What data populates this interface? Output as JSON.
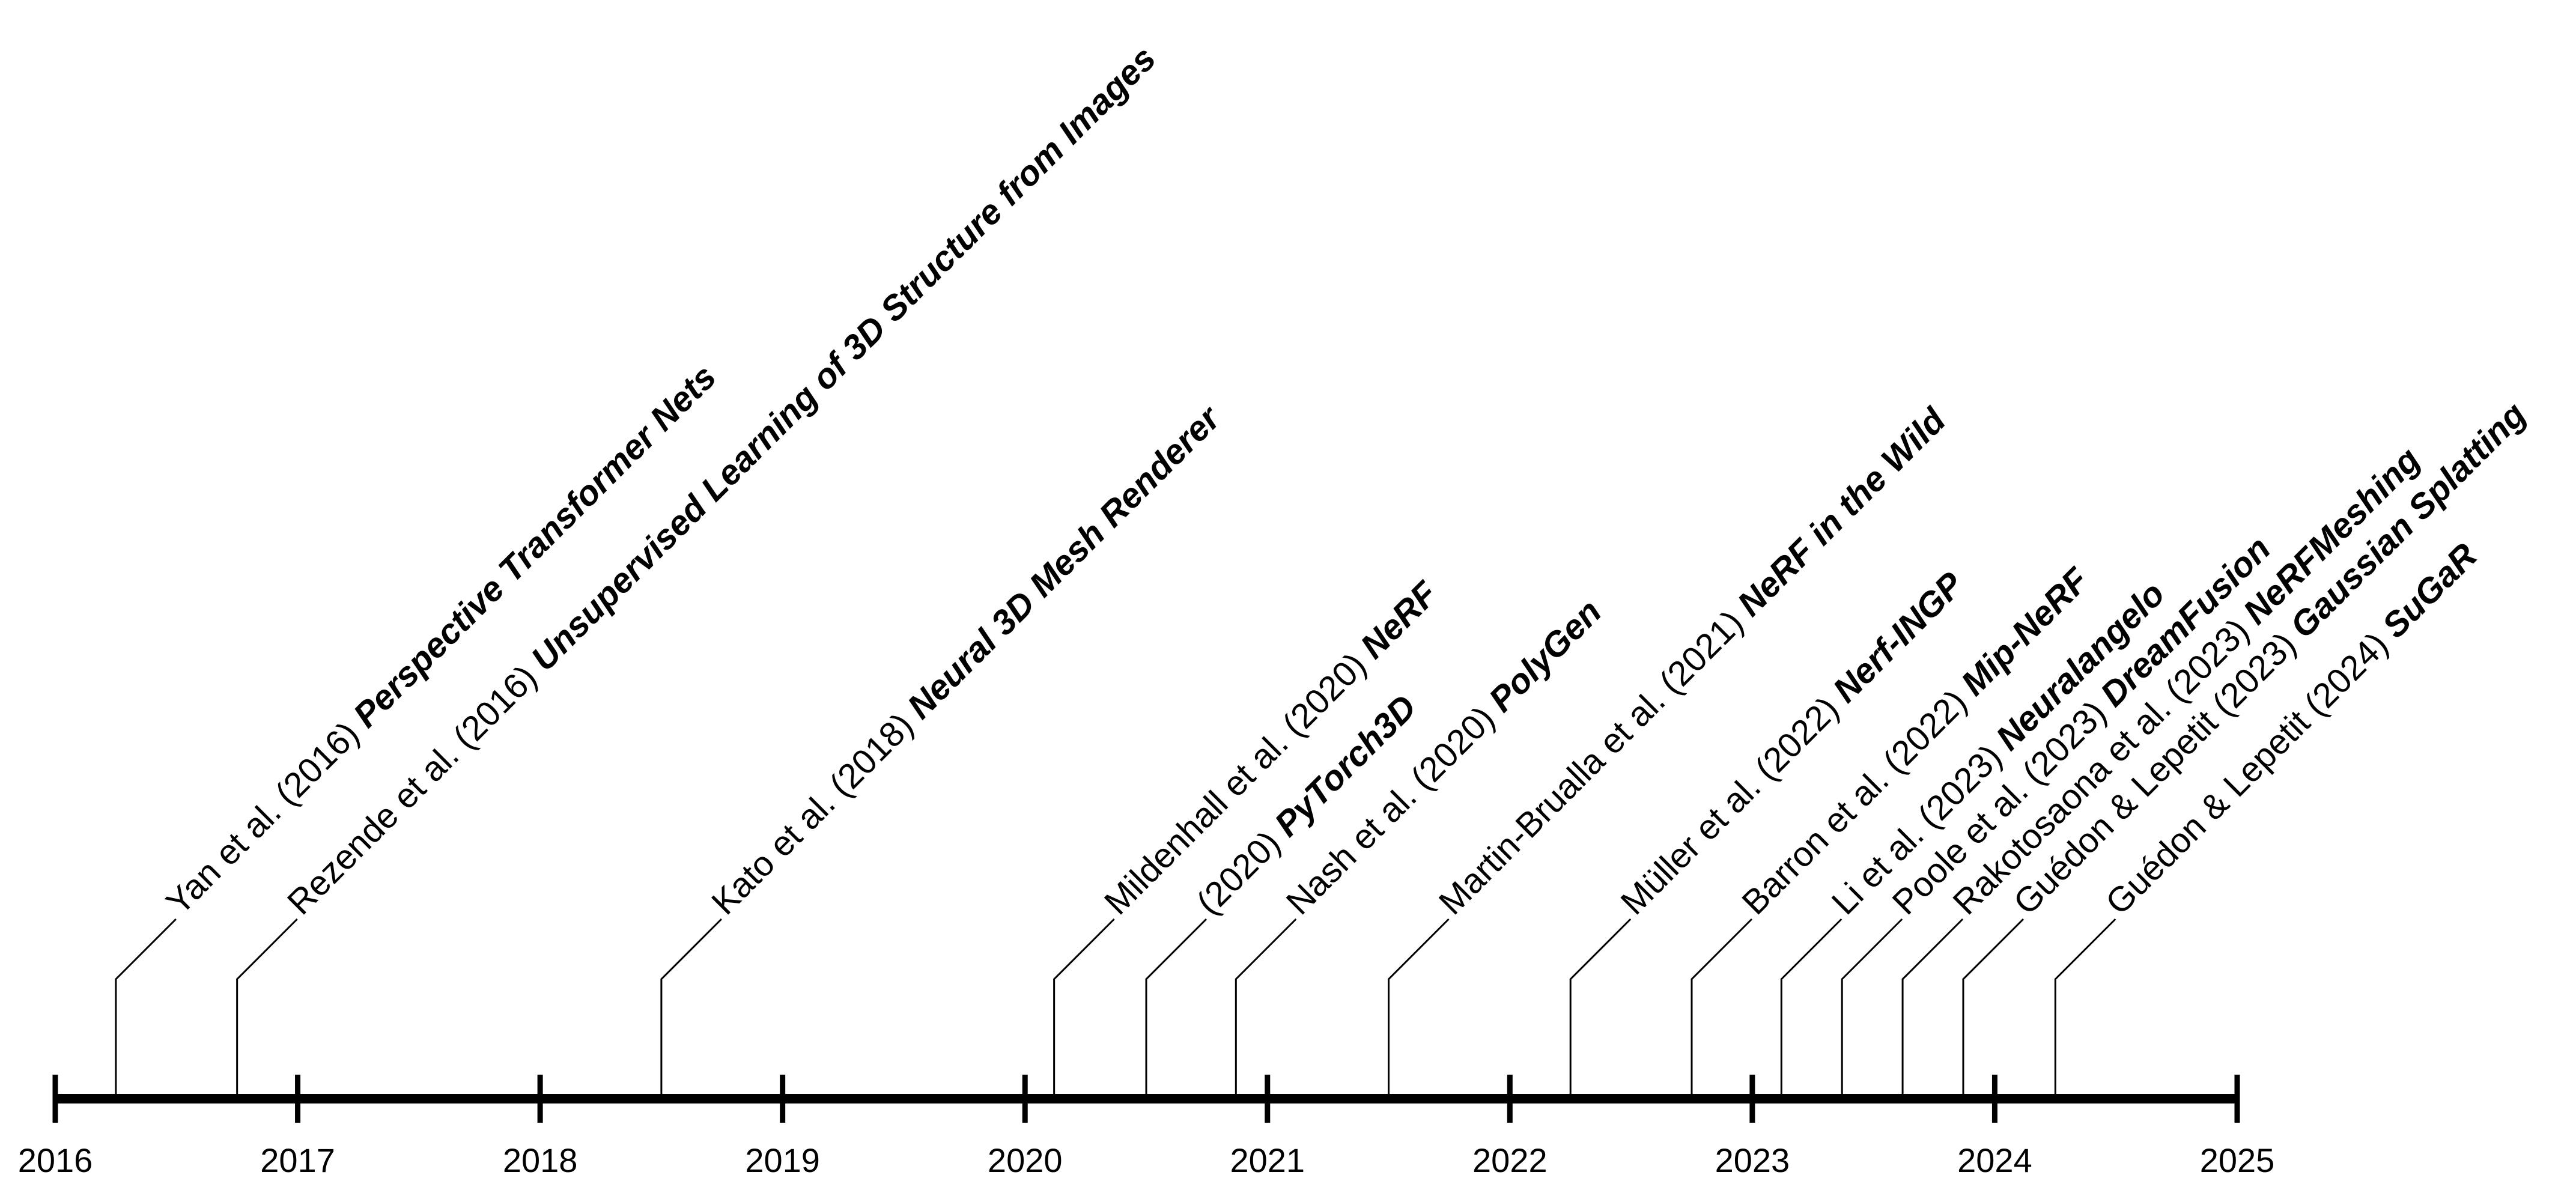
{
  "timeline": {
    "years": [
      "2016",
      "2017",
      "2018",
      "2019",
      "2020",
      "2021",
      "2022",
      "2023",
      "2024",
      "2025"
    ],
    "start_year": 2016,
    "end_year": 2025,
    "events": [
      {
        "date": 2016.25,
        "author": "Yan et al. (2016) ",
        "title": "Perspective Transformer Nets"
      },
      {
        "date": 2016.75,
        "author": "Rezende et al. (2016) ",
        "title": "Unsupervised Learning of 3D Structure from Images"
      },
      {
        "date": 2018.5,
        "author": "Kato et al. (2018) ",
        "title": "Neural 3D Mesh Renderer"
      },
      {
        "date": 2020.12,
        "author": "Mildenhall et al. (2020) ",
        "title": "NeRF"
      },
      {
        "date": 2020.5,
        "author": "(2020) ",
        "title": "PyTorch3D"
      },
      {
        "date": 2020.87,
        "author": "Nash et al. (2020) ",
        "title": "PolyGen"
      },
      {
        "date": 2021.5,
        "author": "Martin-Brualla et al. (2021) ",
        "title": "NeRF in the Wild"
      },
      {
        "date": 2022.25,
        "author": "Müller et al. (2022) ",
        "title": "Nerf-INGP"
      },
      {
        "date": 2022.75,
        "author": "Barron et al. (2022) ",
        "title": "Mip-NeRF"
      },
      {
        "date": 2023.12,
        "author": "Li et al. (2023) ",
        "title": "Neuralangelo"
      },
      {
        "date": 2023.37,
        "author": "Poole et al. (2023) ",
        "title": "DreamFusion"
      },
      {
        "date": 2023.62,
        "author": "Rakotosaona et al. (2023) ",
        "title": "NeRFMeshing"
      },
      {
        "date": 2023.87,
        "author": "Guédon & Lepetit (2023) ",
        "title": "Gaussian Splatting"
      },
      {
        "date": 2024.25,
        "author": "Guédon & Lepetit (2024) ",
        "title": "SuGaR"
      }
    ]
  }
}
